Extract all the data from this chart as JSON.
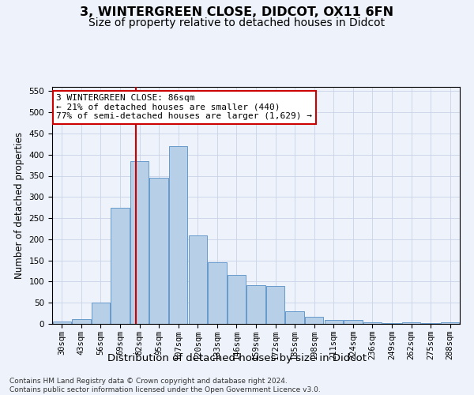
{
  "title": "3, WINTERGREEN CLOSE, DIDCOT, OX11 6FN",
  "subtitle": "Size of property relative to detached houses in Didcot",
  "xlabel": "Distribution of detached houses by size in Didcot",
  "ylabel": "Number of detached properties",
  "bar_labels": [
    "30sqm",
    "43sqm",
    "56sqm",
    "69sqm",
    "82sqm",
    "95sqm",
    "107sqm",
    "120sqm",
    "133sqm",
    "146sqm",
    "159sqm",
    "172sqm",
    "185sqm",
    "198sqm",
    "211sqm",
    "224sqm",
    "236sqm",
    "249sqm",
    "262sqm",
    "275sqm",
    "288sqm"
  ],
  "bar_values": [
    5,
    12,
    50,
    275,
    385,
    345,
    420,
    210,
    145,
    115,
    92,
    90,
    30,
    17,
    10,
    10,
    3,
    2,
    3,
    1,
    3
  ],
  "bar_color": "#b8cfe8",
  "bar_edgecolor": "#6699cc",
  "vline_color": "#cc0000",
  "annotation_text": "3 WINTERGREEN CLOSE: 86sqm\n← 21% of detached houses are smaller (440)\n77% of semi-detached houses are larger (1,629) →",
  "annotation_box_color": "#ffffff",
  "annotation_box_edgecolor": "#cc0000",
  "ylim": [
    0,
    560
  ],
  "yticks": [
    0,
    50,
    100,
    150,
    200,
    250,
    300,
    350,
    400,
    450,
    500,
    550
  ],
  "grid_color": "#c8d4e8",
  "bg_color": "#eef2fa",
  "footer_text": "Contains HM Land Registry data © Crown copyright and database right 2024.\nContains public sector information licensed under the Open Government Licence v3.0.",
  "title_fontsize": 11.5,
  "subtitle_fontsize": 10,
  "xlabel_fontsize": 9.5,
  "ylabel_fontsize": 8.5,
  "tick_fontsize": 7.5,
  "annotation_fontsize": 8,
  "footer_fontsize": 6.5
}
